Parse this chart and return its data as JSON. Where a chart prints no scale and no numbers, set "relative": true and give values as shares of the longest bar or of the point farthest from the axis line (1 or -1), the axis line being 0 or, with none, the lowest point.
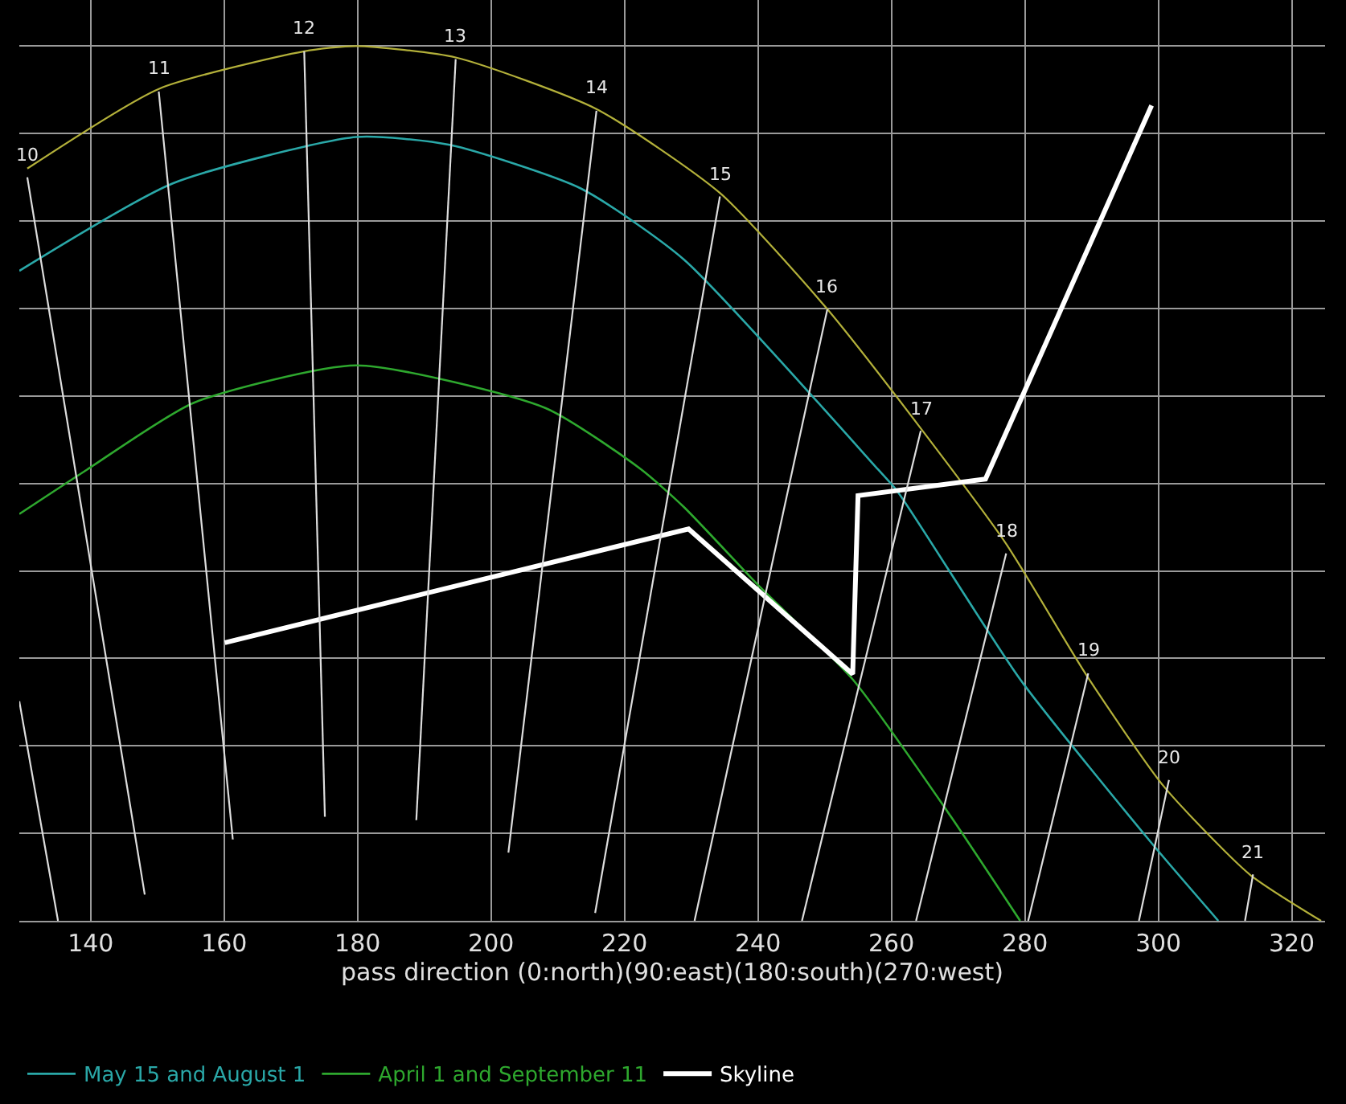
{
  "chart_data": {
    "type": "line",
    "relative": true,
    "xlabel": "pass direction (0:north)(90:east)(180:south)(270:west)",
    "xlim": [
      129.3,
      325
    ],
    "xticks": [
      140,
      160,
      180,
      200,
      220,
      240,
      260,
      280,
      300,
      320
    ],
    "grid": true,
    "legend": "bottom",
    "marker": "none",
    "line_style": "solid",
    "series": [
      {
        "color": "#b3b03a",
        "x": [
          130.5,
          150.2,
          172,
          179.8,
          194.7,
          215.8,
          234.3,
          250.2,
          264.4,
          277.2,
          289.3,
          300.9,
          313.7,
          324.4
        ],
        "values": [
          0.86,
          0.951,
          0.994,
          1,
          0.987,
          0.928,
          0.832,
          0.701,
          0.563,
          0.431,
          0.28,
          0.153,
          0.053,
          0
        ]
      },
      {
        "name": "May 15 and August 1",
        "color": "#2aa8a8",
        "x": [
          129.3,
          152.3,
          179.8,
          193.8,
          213.5,
          228.9,
          258,
          260.9,
          279.3,
          299.2,
          309
        ],
        "values": [
          0.743,
          0.843,
          0.896,
          0.887,
          0.837,
          0.756,
          0.516,
          0.491,
          0.276,
          0.087,
          0
        ]
      },
      {
        "name": "April 1 and September 11",
        "color": "#2ea82e",
        "x": [
          129.3,
          139.5,
          155.4,
          179.8,
          208.2,
          222.5,
          228.9,
          240,
          254.2,
          268.4,
          279.3
        ],
        "values": [
          0.465,
          0.516,
          0.592,
          0.635,
          0.586,
          0.516,
          0.473,
          0.384,
          0.276,
          0.125,
          0
        ]
      },
      {
        "name": "Skyline",
        "color": "#ffffff",
        "x": [
          160.1,
          229.6,
          254.2,
          255,
          274.1,
          299
        ],
        "values": [
          0.318,
          0.448,
          0.282,
          0.486,
          0.505,
          0.932
        ]
      },
      {
        "color": "#dddddd",
        "x": [
          129.3,
          135.1
        ],
        "values": [
          0.251,
          0
        ]
      },
      {
        "color": "#dddddd",
        "x": [
          130.5,
          148.1
        ],
        "values": [
          0.85,
          0.03
        ]
      },
      {
        "color": "#dddddd",
        "x": [
          150.2,
          161.3
        ],
        "values": [
          0.948,
          0.093
        ]
      },
      {
        "color": "#dddddd",
        "x": [
          172,
          175.1
        ],
        "values": [
          0.994,
          0.119
        ]
      },
      {
        "color": "#dddddd",
        "x": [
          194.7,
          188.8
        ],
        "values": [
          0.985,
          0.115
        ]
      },
      {
        "color": "#dddddd",
        "x": [
          215.8,
          202.6
        ],
        "values": [
          0.926,
          0.078
        ]
      },
      {
        "color": "#dddddd",
        "x": [
          234.3,
          215.6
        ],
        "values": [
          0.828,
          0.009
        ]
      },
      {
        "color": "#dddddd",
        "x": [
          250.4,
          230.5
        ],
        "values": [
          0.699,
          0
        ]
      },
      {
        "color": "#dddddd",
        "x": [
          264.4,
          246.6
        ],
        "values": [
          0.56,
          0
        ]
      },
      {
        "color": "#dddddd",
        "x": [
          277.2,
          263.7
        ],
        "values": [
          0.42,
          0
        ]
      },
      {
        "color": "#dddddd",
        "x": [
          289.5,
          280.5
        ],
        "values": [
          0.283,
          0
        ]
      },
      {
        "color": "#dddddd",
        "x": [
          301.6,
          297.1
        ],
        "values": [
          0.161,
          0
        ]
      },
      {
        "color": "#dddddd",
        "x": [
          314.2,
          313
        ],
        "values": [
          0.053,
          0
        ]
      }
    ],
    "annotations": [
      {
        "text": "10",
        "x": 130.5,
        "y": 0.85
      },
      {
        "text": "11",
        "x": 150.2,
        "y": 0.948
      },
      {
        "text": "12",
        "x": 172,
        "y": 0.994
      },
      {
        "text": "13",
        "x": 194.7,
        "y": 0.985
      },
      {
        "text": "14",
        "x": 215.8,
        "y": 0.926
      },
      {
        "text": "15",
        "x": 234.3,
        "y": 0.828
      },
      {
        "text": "16",
        "x": 250.4,
        "y": 0.699
      },
      {
        "text": "17",
        "x": 264.4,
        "y": 0.56
      },
      {
        "text": "18",
        "x": 277.2,
        "y": 0.42
      },
      {
        "text": "19",
        "x": 289.5,
        "y": 0.283
      },
      {
        "text": "20",
        "x": 301.6,
        "y": 0.161
      },
      {
        "text": "21",
        "x": 314.2,
        "y": 0.053
      }
    ]
  }
}
